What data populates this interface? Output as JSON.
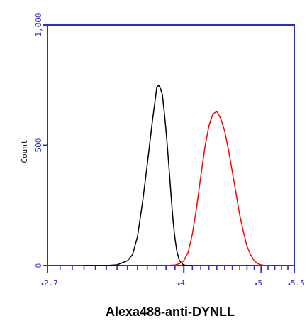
{
  "chart_data": {
    "type": "line",
    "xlabel": "Alexa488-anti-DYNLL",
    "ylabel": "Count",
    "x_scale": "log",
    "xlim": [
      2.7,
      5.5
    ],
    "ylim": [
      0,
      1000
    ],
    "y_ticks": [
      0,
      500,
      1000
    ],
    "y_tick_labels": [
      "0",
      "500",
      "1,000"
    ],
    "x_tick_labels": [
      {
        "value": 2.7,
        "label": "2.7"
      },
      {
        "value": 4,
        "label": "4"
      },
      {
        "value": 5,
        "label": "5"
      },
      {
        "value": 5.5,
        "label": "5.5"
      }
    ],
    "series": [
      {
        "color": "#000000",
        "x": [
          3.0,
          3.1,
          3.2,
          3.3,
          3.4,
          3.45,
          3.5,
          3.55,
          3.6,
          3.65,
          3.68,
          3.7,
          3.72,
          3.74,
          3.76,
          3.78,
          3.8,
          3.82,
          3.84,
          3.86,
          3.88,
          3.9,
          3.92,
          3.95,
          3.98,
          4.0,
          4.05,
          4.1
        ],
        "y": [
          0,
          0,
          0,
          3,
          20,
          45,
          120,
          260,
          420,
          590,
          680,
          740,
          750,
          735,
          710,
          640,
          560,
          470,
          370,
          270,
          180,
          110,
          60,
          20,
          8,
          2,
          0,
          0
        ]
      },
      {
        "color": "#ff0000",
        "x": [
          3.8,
          3.9,
          3.95,
          4.0,
          4.05,
          4.1,
          4.15,
          4.2,
          4.25,
          4.3,
          4.35,
          4.4,
          4.45,
          4.5,
          4.55,
          4.6,
          4.65,
          4.7,
          4.75,
          4.8,
          4.85,
          4.9,
          4.95,
          5.0,
          5.05,
          5.1
        ],
        "y": [
          0,
          2,
          8,
          20,
          55,
          130,
          240,
          370,
          490,
          580,
          630,
          640,
          610,
          560,
          480,
          390,
          300,
          210,
          140,
          80,
          45,
          20,
          8,
          3,
          0,
          0
        ]
      }
    ]
  }
}
